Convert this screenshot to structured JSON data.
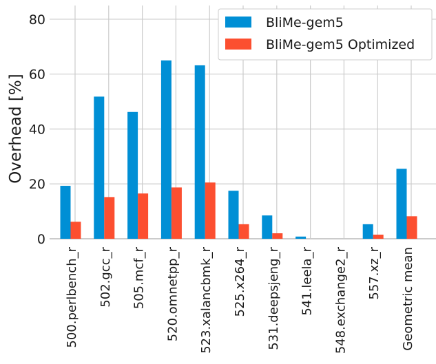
{
  "chart_data": {
    "type": "bar",
    "title": "",
    "xlabel": "",
    "ylabel": "Overhead [%]",
    "ylim": [
      0,
      85
    ],
    "yticks": [
      0,
      20,
      40,
      60,
      80
    ],
    "grid": true,
    "legend_position": "top-right",
    "categories": [
      "500.perlbench_r",
      "502.gcc_r",
      "505.mcf_r",
      "520.omnetpp_r",
      "523.xalancbmk_r",
      "525.x264_r",
      "531.deepsjeng_r",
      "541.leela_r",
      "548.exchange2_r",
      "557.xz_r",
      "Geometric mean"
    ],
    "series": [
      {
        "name": "BliMe-gem5",
        "color": "#008fd5",
        "values": [
          19.3,
          51.8,
          46.2,
          65.0,
          63.2,
          17.5,
          8.5,
          0.8,
          0.0,
          5.3,
          25.5
        ]
      },
      {
        "name": "BliMe-gem5 Optimized",
        "color": "#fc4f30",
        "values": [
          6.2,
          15.2,
          16.5,
          18.7,
          20.5,
          5.3,
          2.0,
          0.0,
          0.0,
          1.5,
          8.2
        ]
      }
    ]
  }
}
